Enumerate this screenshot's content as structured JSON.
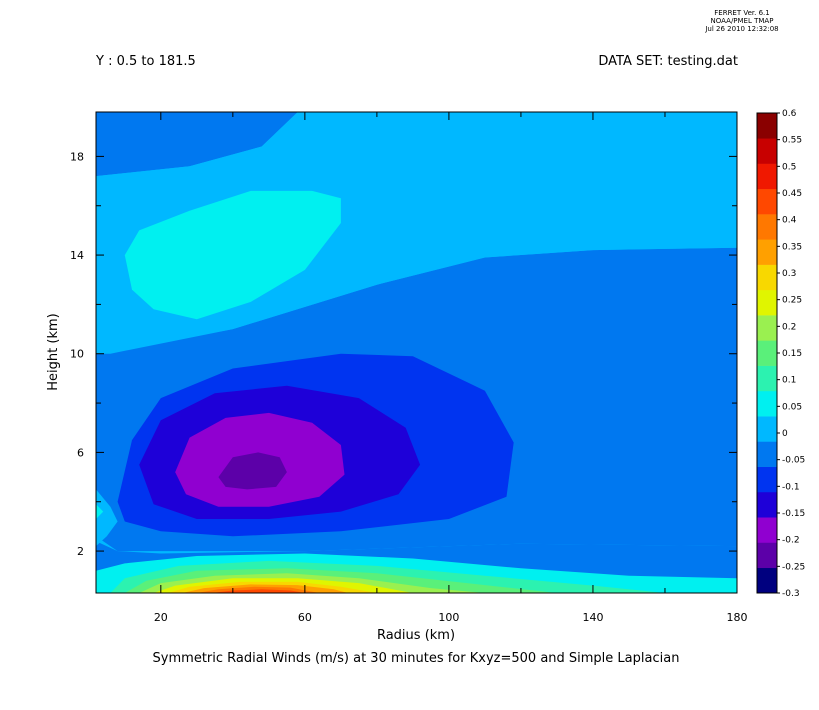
{
  "header": {
    "stamp_lines": [
      "FERRET Ver. 6.1",
      "NOAA/PMEL TMAP",
      "Jul 26 2010 12:32:08"
    ],
    "y_range_label": "Y : 0.5 to 181.5",
    "dataset_label": "DATA SET: testing.dat"
  },
  "chart_data": {
    "type": "filled-contour",
    "title": "Symmetric Radial Winds (m/s) at 30 minutes for Kxyz=500 and Simple Laplacian",
    "xlabel": "Radius (km)",
    "ylabel": "Height (km)",
    "xlim": [
      2,
      180
    ],
    "ylim": [
      0.3,
      19.8
    ],
    "x_ticks": [
      20,
      60,
      100,
      140,
      180
    ],
    "x_minor_ticks": [
      40,
      80,
      120,
      160
    ],
    "y_ticks": [
      2,
      6,
      10,
      14,
      18
    ],
    "y_minor_ticks": [
      4,
      8,
      12,
      16
    ],
    "grid": false,
    "colorbar": {
      "levels": [
        -0.3,
        -0.25,
        -0.2,
        -0.15,
        -0.1,
        -0.05,
        0,
        0.05,
        0.1,
        0.15,
        0.2,
        0.25,
        0.3,
        0.35,
        0.4,
        0.45,
        0.5,
        0.55,
        0.6
      ],
      "labels": [
        "-0.3",
        "-0.25",
        "-0.2",
        "-0.15",
        "-0.1",
        "-0.05",
        "0",
        "0.05",
        "0.1",
        "0.15",
        "0.2",
        "0.25",
        "0.3",
        "0.35",
        "0.4",
        "0.45",
        "0.5",
        "0.55",
        "0.6"
      ],
      "colors": [
        "#00007f",
        "#5c00a8",
        "#9000d0",
        "#1e00d8",
        "#0034f0",
        "#0078f0",
        "#00b8ff",
        "#00f0f0",
        "#2cf2b0",
        "#5af07a",
        "#9af050",
        "#e0f500",
        "#f8d800",
        "#ffa000",
        "#ff7800",
        "#ff4800",
        "#f01800",
        "#c80000",
        "#8a0000"
      ]
    },
    "regions": [
      {
        "name": "positive-upper-band",
        "level": "0 to 0.05",
        "points": [
          [
            2,
            19.8
          ],
          [
            180,
            19.8
          ],
          [
            180,
            2.2
          ],
          [
            120,
            2.3
          ],
          [
            60,
            2.0
          ],
          [
            20,
            1.9
          ],
          [
            8,
            2.0
          ],
          [
            2,
            2.4
          ]
        ]
      },
      {
        "name": "negative-envelope",
        "level": "-0.05 to 0",
        "points": [
          [
            2,
            19.8
          ],
          [
            58,
            19.8
          ],
          [
            48,
            18.4
          ],
          [
            28,
            17.6
          ],
          [
            2,
            17.2
          ],
          [
            2,
            13.2
          ],
          [
            2,
            10.0
          ],
          [
            40,
            11.0
          ],
          [
            80,
            12.8
          ],
          [
            110,
            13.9
          ],
          [
            140,
            14.2
          ],
          [
            180,
            14.3
          ],
          [
            180,
            2.2
          ],
          [
            120,
            2.3
          ],
          [
            60,
            2.0
          ],
          [
            22,
            2.0
          ],
          [
            8,
            2.0
          ],
          [
            2,
            2.6
          ]
        ]
      },
      {
        "name": "upper-positive-patch",
        "level": "0 to 0.05",
        "points": [
          [
            2,
            17.2
          ],
          [
            28,
            17.6
          ],
          [
            48,
            18.4
          ],
          [
            58,
            19.8
          ],
          [
            180,
            19.8
          ],
          [
            180,
            14.3
          ],
          [
            140,
            14.2
          ],
          [
            110,
            13.9
          ],
          [
            80,
            12.8
          ],
          [
            40,
            11.0
          ],
          [
            6,
            10.0
          ],
          [
            2,
            10.0
          ]
        ]
      },
      {
        "name": "upper-cyan-blob",
        "level": "0.05 to 0.1",
        "points": [
          [
            12,
            12.6
          ],
          [
            10,
            14.0
          ],
          [
            14,
            15.0
          ],
          [
            28,
            15.8
          ],
          [
            45,
            16.6
          ],
          [
            62,
            16.6
          ],
          [
            70,
            16.3
          ],
          [
            70,
            15.3
          ],
          [
            60,
            13.4
          ],
          [
            45,
            12.1
          ],
          [
            30,
            11.4
          ],
          [
            18,
            11.8
          ]
        ]
      },
      {
        "name": "mid-negative-outer",
        "level": "-0.1 to -0.05",
        "points": [
          [
            8,
            4.0
          ],
          [
            12,
            6.5
          ],
          [
            20,
            8.2
          ],
          [
            40,
            9.4
          ],
          [
            70,
            10.0
          ],
          [
            90,
            9.9
          ],
          [
            110,
            8.5
          ],
          [
            118,
            6.4
          ],
          [
            116,
            4.2
          ],
          [
            100,
            3.3
          ],
          [
            70,
            2.8
          ],
          [
            40,
            2.6
          ],
          [
            20,
            2.8
          ],
          [
            10,
            3.2
          ]
        ]
      },
      {
        "name": "mid-negative-inner",
        "level": "-0.15 to -0.1",
        "points": [
          [
            14,
            5.5
          ],
          [
            20,
            7.3
          ],
          [
            35,
            8.4
          ],
          [
            55,
            8.7
          ],
          [
            75,
            8.2
          ],
          [
            88,
            7.0
          ],
          [
            92,
            5.5
          ],
          [
            86,
            4.3
          ],
          [
            70,
            3.6
          ],
          [
            50,
            3.3
          ],
          [
            30,
            3.3
          ],
          [
            18,
            3.9
          ]
        ]
      },
      {
        "name": "core-violet",
        "level": "-0.2 to -0.15",
        "points": [
          [
            24,
            5.2
          ],
          [
            28,
            6.6
          ],
          [
            38,
            7.4
          ],
          [
            50,
            7.6
          ],
          [
            62,
            7.2
          ],
          [
            70,
            6.3
          ],
          [
            71,
            5.1
          ],
          [
            64,
            4.2
          ],
          [
            50,
            3.8
          ],
          [
            36,
            3.8
          ],
          [
            27,
            4.3
          ]
        ]
      },
      {
        "name": "core-deep-violet",
        "level": "-0.25 to -0.2",
        "points": [
          [
            36,
            5.0
          ],
          [
            40,
            5.8
          ],
          [
            47,
            6.0
          ],
          [
            53,
            5.8
          ],
          [
            55,
            5.2
          ],
          [
            52,
            4.6
          ],
          [
            44,
            4.5
          ],
          [
            38,
            4.6
          ]
        ]
      },
      {
        "name": "left-edge-patch",
        "level": "0 to 0.05",
        "points": [
          [
            2,
            2.2
          ],
          [
            2,
            4.5
          ],
          [
            6,
            3.8
          ],
          [
            8,
            3.2
          ],
          [
            5,
            2.6
          ]
        ]
      },
      {
        "name": "left-edge-cyan",
        "level": "0.05 to 0.1",
        "points": [
          [
            2,
            3.3
          ],
          [
            2,
            3.9
          ],
          [
            4,
            3.6
          ]
        ]
      },
      {
        "name": "surface-band-1",
        "level": "0.05 to 0.1",
        "points": [
          [
            2,
            0.3
          ],
          [
            2,
            1.2
          ],
          [
            10,
            1.5
          ],
          [
            30,
            1.8
          ],
          [
            60,
            1.9
          ],
          [
            90,
            1.7
          ],
          [
            120,
            1.3
          ],
          [
            150,
            1.0
          ],
          [
            180,
            0.9
          ],
          [
            180,
            0.3
          ]
        ]
      },
      {
        "name": "surface-band-2",
        "level": "0.1 to 0.15",
        "points": [
          [
            6,
            0.3
          ],
          [
            10,
            0.9
          ],
          [
            25,
            1.4
          ],
          [
            50,
            1.6
          ],
          [
            80,
            1.4
          ],
          [
            110,
            1.0
          ],
          [
            140,
            0.6
          ],
          [
            160,
            0.3
          ]
        ]
      },
      {
        "name": "surface-band-3",
        "level": "0.15 to 0.2",
        "points": [
          [
            10,
            0.3
          ],
          [
            16,
            0.8
          ],
          [
            30,
            1.2
          ],
          [
            55,
            1.3
          ],
          [
            80,
            1.1
          ],
          [
            105,
            0.7
          ],
          [
            130,
            0.3
          ]
        ]
      },
      {
        "name": "surface-band-4",
        "level": "0.2 to 0.25",
        "points": [
          [
            14,
            0.3
          ],
          [
            20,
            0.7
          ],
          [
            35,
            1.0
          ],
          [
            55,
            1.1
          ],
          [
            75,
            0.9
          ],
          [
            95,
            0.5
          ],
          [
            110,
            0.3
          ]
        ]
      },
      {
        "name": "surface-band-5",
        "level": "0.25 to 0.3",
        "points": [
          [
            18,
            0.3
          ],
          [
            24,
            0.6
          ],
          [
            40,
            0.9
          ],
          [
            58,
            0.9
          ],
          [
            75,
            0.7
          ],
          [
            90,
            0.3
          ]
        ]
      },
      {
        "name": "surface-band-6",
        "level": "0.3 to 0.35",
        "points": [
          [
            22,
            0.3
          ],
          [
            28,
            0.55
          ],
          [
            42,
            0.75
          ],
          [
            58,
            0.75
          ],
          [
            70,
            0.55
          ],
          [
            80,
            0.3
          ]
        ]
      },
      {
        "name": "surface-band-7",
        "level": "0.35 to 0.4",
        "points": [
          [
            26,
            0.3
          ],
          [
            32,
            0.5
          ],
          [
            45,
            0.65
          ],
          [
            58,
            0.62
          ],
          [
            68,
            0.45
          ],
          [
            72,
            0.3
          ]
        ]
      },
      {
        "name": "surface-band-8",
        "level": "0.4 to 0.45",
        "points": [
          [
            30,
            0.3
          ],
          [
            36,
            0.45
          ],
          [
            46,
            0.55
          ],
          [
            56,
            0.52
          ],
          [
            64,
            0.3
          ]
        ]
      },
      {
        "name": "surface-band-9",
        "level": "0.45 to 0.5",
        "points": [
          [
            34,
            0.3
          ],
          [
            40,
            0.4
          ],
          [
            48,
            0.45
          ],
          [
            56,
            0.4
          ],
          [
            60,
            0.3
          ]
        ]
      }
    ]
  }
}
